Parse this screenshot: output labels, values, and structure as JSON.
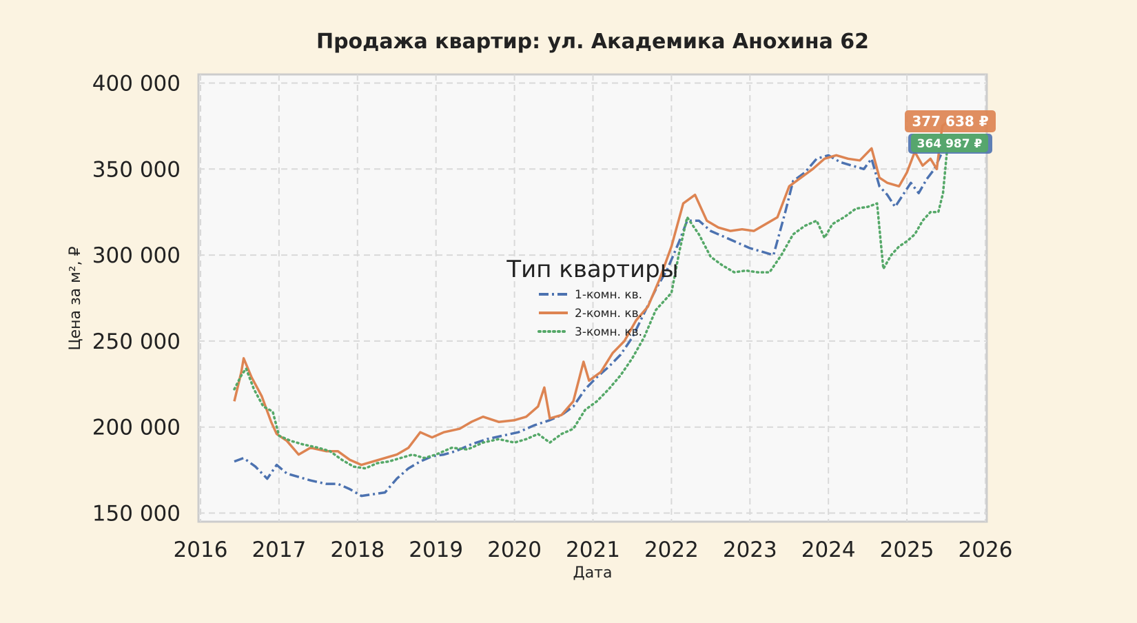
{
  "chart_data": {
    "type": "line",
    "title": "Продажа квартир: ул. Академика Анохина 62",
    "xlabel": "Дата",
    "ylabel": "Цена за м², ₽",
    "xlim": [
      2016,
      2026
    ],
    "ylim": [
      145000,
      405000
    ],
    "x_ticks": [
      2016,
      2017,
      2018,
      2019,
      2020,
      2021,
      2022,
      2023,
      2024,
      2025,
      2026
    ],
    "x_tick_labels": [
      "2016",
      "2017",
      "2018",
      "2019",
      "2020",
      "2021",
      "2022",
      "2023",
      "2024",
      "2025",
      "2026"
    ],
    "y_ticks": [
      150000,
      200000,
      250000,
      300000,
      350000,
      400000
    ],
    "y_tick_labels": [
      "150 000",
      "200 000",
      "250 000",
      "300 000",
      "350 000",
      "400 000"
    ],
    "grid": true,
    "legend": {
      "title": "Тип квартиры",
      "placement": "center"
    },
    "series": [
      {
        "name": "1-комн. кв.",
        "color": "#4c72b0",
        "style": "dashdot",
        "points": [
          [
            2016.43,
            180000
          ],
          [
            2016.55,
            182000
          ],
          [
            2016.7,
            177000
          ],
          [
            2016.85,
            170000
          ],
          [
            2016.97,
            178000
          ],
          [
            2017.1,
            173000
          ],
          [
            2017.25,
            171000
          ],
          [
            2017.4,
            169000
          ],
          [
            2017.6,
            167000
          ],
          [
            2017.75,
            167000
          ],
          [
            2017.9,
            164000
          ],
          [
            2018.05,
            160000
          ],
          [
            2018.2,
            161000
          ],
          [
            2018.35,
            162000
          ],
          [
            2018.5,
            170000
          ],
          [
            2018.65,
            176000
          ],
          [
            2018.8,
            180000
          ],
          [
            2018.95,
            183000
          ],
          [
            2019.1,
            184000
          ],
          [
            2019.25,
            186000
          ],
          [
            2019.45,
            190000
          ],
          [
            2019.65,
            193000
          ],
          [
            2019.85,
            195000
          ],
          [
            2020.05,
            197000
          ],
          [
            2020.25,
            201000
          ],
          [
            2020.45,
            204000
          ],
          [
            2020.6,
            207000
          ],
          [
            2020.75,
            212000
          ],
          [
            2020.9,
            222000
          ],
          [
            2021.05,
            229000
          ],
          [
            2021.2,
            235000
          ],
          [
            2021.35,
            242000
          ],
          [
            2021.5,
            252000
          ],
          [
            2021.65,
            266000
          ],
          [
            2021.8,
            280000
          ],
          [
            2021.95,
            292000
          ],
          [
            2022.1,
            308000
          ],
          [
            2022.2,
            320000
          ],
          [
            2022.35,
            320000
          ],
          [
            2022.5,
            314000
          ],
          [
            2022.7,
            310000
          ],
          [
            2022.85,
            307000
          ],
          [
            2023.0,
            304000
          ],
          [
            2023.15,
            302000
          ],
          [
            2023.3,
            300000
          ],
          [
            2023.45,
            325000
          ],
          [
            2023.55,
            343000
          ],
          [
            2023.7,
            348000
          ],
          [
            2023.85,
            356000
          ],
          [
            2024.0,
            358000
          ],
          [
            2024.15,
            354000
          ],
          [
            2024.3,
            352000
          ],
          [
            2024.45,
            350000
          ],
          [
            2024.55,
            356000
          ],
          [
            2024.65,
            340000
          ],
          [
            2024.75,
            335000
          ],
          [
            2024.85,
            328000
          ],
          [
            2024.95,
            335000
          ],
          [
            2025.05,
            342000
          ],
          [
            2025.15,
            336000
          ],
          [
            2025.25,
            344000
          ],
          [
            2025.35,
            350000
          ],
          [
            2025.45,
            360000
          ],
          [
            2025.52,
            364987
          ]
        ],
        "last_value_label": "364 987 ₽"
      },
      {
        "name": "2-комн. кв.",
        "color": "#dd8452",
        "style": "solid",
        "points": [
          [
            2016.43,
            215000
          ],
          [
            2016.52,
            232000
          ],
          [
            2016.55,
            240000
          ],
          [
            2016.65,
            229000
          ],
          [
            2016.78,
            218000
          ],
          [
            2016.9,
            203000
          ],
          [
            2016.97,
            196000
          ],
          [
            2017.1,
            192000
          ],
          [
            2017.25,
            184000
          ],
          [
            2017.4,
            188000
          ],
          [
            2017.6,
            186000
          ],
          [
            2017.75,
            186000
          ],
          [
            2017.9,
            181000
          ],
          [
            2018.05,
            178000
          ],
          [
            2018.2,
            180000
          ],
          [
            2018.35,
            182000
          ],
          [
            2018.5,
            184000
          ],
          [
            2018.65,
            188000
          ],
          [
            2018.8,
            197000
          ],
          [
            2018.95,
            194000
          ],
          [
            2019.1,
            197000
          ],
          [
            2019.3,
            199000
          ],
          [
            2019.45,
            203000
          ],
          [
            2019.6,
            206000
          ],
          [
            2019.8,
            203000
          ],
          [
            2020.0,
            204000
          ],
          [
            2020.15,
            206000
          ],
          [
            2020.3,
            212000
          ],
          [
            2020.38,
            223000
          ],
          [
            2020.45,
            205000
          ],
          [
            2020.6,
            207000
          ],
          [
            2020.75,
            215000
          ],
          [
            2020.88,
            238000
          ],
          [
            2020.95,
            227000
          ],
          [
            2021.1,
            232000
          ],
          [
            2021.25,
            243000
          ],
          [
            2021.4,
            250000
          ],
          [
            2021.55,
            262000
          ],
          [
            2021.7,
            270000
          ],
          [
            2021.85,
            286000
          ],
          [
            2022.0,
            305000
          ],
          [
            2022.15,
            330000
          ],
          [
            2022.3,
            335000
          ],
          [
            2022.45,
            320000
          ],
          [
            2022.6,
            316000
          ],
          [
            2022.75,
            314000
          ],
          [
            2022.9,
            315000
          ],
          [
            2023.05,
            314000
          ],
          [
            2023.2,
            318000
          ],
          [
            2023.35,
            322000
          ],
          [
            2023.5,
            340000
          ],
          [
            2023.65,
            345000
          ],
          [
            2023.8,
            350000
          ],
          [
            2023.95,
            356000
          ],
          [
            2024.1,
            358000
          ],
          [
            2024.25,
            356000
          ],
          [
            2024.4,
            355000
          ],
          [
            2024.55,
            362000
          ],
          [
            2024.65,
            345000
          ],
          [
            2024.75,
            342000
          ],
          [
            2024.9,
            340000
          ],
          [
            2025.0,
            348000
          ],
          [
            2025.1,
            360000
          ],
          [
            2025.2,
            352000
          ],
          [
            2025.3,
            356000
          ],
          [
            2025.38,
            350000
          ],
          [
            2025.45,
            375000
          ],
          [
            2025.52,
            377638
          ]
        ],
        "last_value_label": "377 638 ₽"
      },
      {
        "name": "3-комн. кв.",
        "color": "#55a868",
        "style": "dotted",
        "points": [
          [
            2016.43,
            222000
          ],
          [
            2016.52,
            230000
          ],
          [
            2016.58,
            234000
          ],
          [
            2016.68,
            222000
          ],
          [
            2016.8,
            212000
          ],
          [
            2016.92,
            209000
          ],
          [
            2017.0,
            195000
          ],
          [
            2017.15,
            192000
          ],
          [
            2017.3,
            190000
          ],
          [
            2017.5,
            188000
          ],
          [
            2017.65,
            186000
          ],
          [
            2017.8,
            181000
          ],
          [
            2017.95,
            177000
          ],
          [
            2018.1,
            176000
          ],
          [
            2018.25,
            179000
          ],
          [
            2018.4,
            180000
          ],
          [
            2018.55,
            182000
          ],
          [
            2018.7,
            184000
          ],
          [
            2018.85,
            182000
          ],
          [
            2019.0,
            184000
          ],
          [
            2019.2,
            188000
          ],
          [
            2019.4,
            187000
          ],
          [
            2019.6,
            191000
          ],
          [
            2019.8,
            193000
          ],
          [
            2020.0,
            191000
          ],
          [
            2020.15,
            193000
          ],
          [
            2020.3,
            196000
          ],
          [
            2020.45,
            191000
          ],
          [
            2020.6,
            196000
          ],
          [
            2020.75,
            199000
          ],
          [
            2020.9,
            210000
          ],
          [
            2021.05,
            215000
          ],
          [
            2021.2,
            222000
          ],
          [
            2021.35,
            230000
          ],
          [
            2021.5,
            240000
          ],
          [
            2021.65,
            252000
          ],
          [
            2021.8,
            268000
          ],
          [
            2022.0,
            278000
          ],
          [
            2022.1,
            302000
          ],
          [
            2022.2,
            322000
          ],
          [
            2022.35,
            312000
          ],
          [
            2022.5,
            299000
          ],
          [
            2022.65,
            294000
          ],
          [
            2022.8,
            290000
          ],
          [
            2022.95,
            291000
          ],
          [
            2023.1,
            290000
          ],
          [
            2023.25,
            290000
          ],
          [
            2023.4,
            300000
          ],
          [
            2023.55,
            312000
          ],
          [
            2023.7,
            317000
          ],
          [
            2023.85,
            320000
          ],
          [
            2023.95,
            310000
          ],
          [
            2024.05,
            318000
          ],
          [
            2024.2,
            322000
          ],
          [
            2024.35,
            327000
          ],
          [
            2024.5,
            328000
          ],
          [
            2024.62,
            330000
          ],
          [
            2024.7,
            292000
          ],
          [
            2024.8,
            300000
          ],
          [
            2024.9,
            305000
          ],
          [
            2025.0,
            308000
          ],
          [
            2025.1,
            312000
          ],
          [
            2025.2,
            320000
          ],
          [
            2025.3,
            325000
          ],
          [
            2025.4,
            325000
          ],
          [
            2025.46,
            336000
          ],
          [
            2025.52,
            364987
          ]
        ],
        "last_value_label": "364 987 ₽"
      }
    ]
  }
}
